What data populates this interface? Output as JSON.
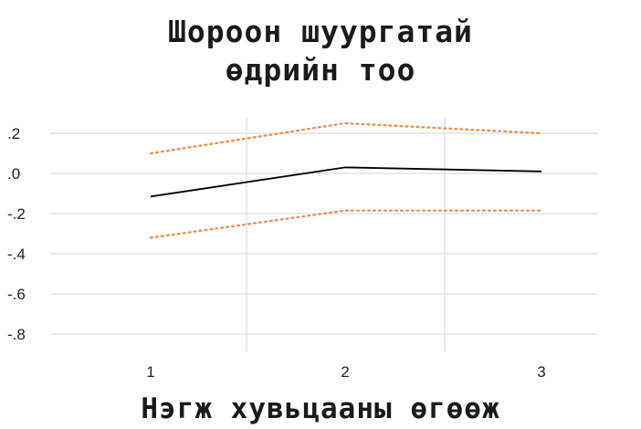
{
  "chart_data": {
    "type": "line",
    "title": [
      "Шороон шуургатай",
      "өдрийн тоо"
    ],
    "xlabel": "Нэгж хувьцааны өгөөж",
    "ylabel": "",
    "x": [
      1,
      2,
      3
    ],
    "x_tick_labels": [
      "1",
      "2",
      "3"
    ],
    "y_ticks": [
      0.2,
      0.0,
      -0.2,
      -0.4,
      -0.6,
      -0.8
    ],
    "y_tick_labels": [
      ".2",
      ".0",
      "-.2",
      "-.4",
      "-.6",
      "-.8"
    ],
    "ylim": [
      -0.85,
      0.27
    ],
    "grid": true,
    "series": [
      {
        "style": "solid",
        "color": "#000000",
        "values": [
          -0.115,
          0.03,
          0.01
        ]
      },
      {
        "style": "dotted",
        "color": "#f08a4b",
        "values": [
          0.1,
          0.25,
          0.2
        ]
      },
      {
        "style": "dotted",
        "color": "#f08a4b",
        "values": [
          -0.32,
          -0.185,
          -0.185
        ]
      }
    ]
  }
}
